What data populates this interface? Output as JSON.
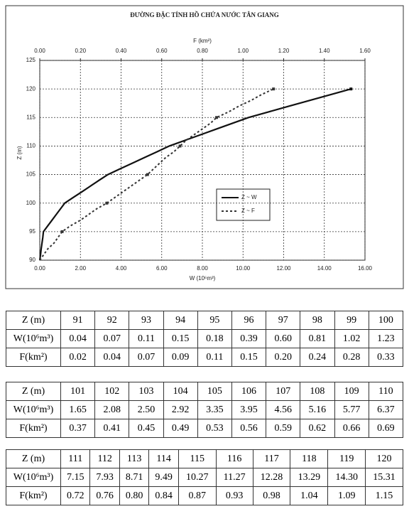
{
  "chart_data": {
    "type": "line",
    "title": "ĐƯỜNG ĐẶC TÍNH HỒ CHỨA NƯỚC TÂN GIANG",
    "xlabel": "W (10⁶m³)",
    "x2label": "F (km²)",
    "ylabel": "Z (m)",
    "xlim": [
      0,
      16
    ],
    "x2lim": [
      0,
      1.6
    ],
    "ylim": [
      90,
      125
    ],
    "xticks": [
      {
        "value": 0,
        "label": "0.00"
      },
      {
        "value": 2,
        "label": "2.00"
      },
      {
        "value": 4,
        "label": "4.00"
      },
      {
        "value": 6,
        "label": "6.00"
      },
      {
        "value": 8,
        "label": "8.00"
      },
      {
        "value": 10,
        "label": "10.00"
      },
      {
        "value": 12,
        "label": "12.00"
      },
      {
        "value": 14,
        "label": "14.00"
      },
      {
        "value": 16,
        "label": "16.00"
      }
    ],
    "x2ticks": [
      {
        "value": 0,
        "label": "0.00"
      },
      {
        "value": 0.2,
        "label": "0.20"
      },
      {
        "value": 0.4,
        "label": "0.40"
      },
      {
        "value": 0.6,
        "label": "0.60"
      },
      {
        "value": 0.8,
        "label": "0.80"
      },
      {
        "value": 1,
        "label": "1.00"
      },
      {
        "value": 1.2,
        "label": "1.20"
      },
      {
        "value": 1.4,
        "label": "1.40"
      },
      {
        "value": 1.6,
        "label": "1.60"
      }
    ],
    "yticks": [
      90,
      95,
      100,
      105,
      110,
      115,
      120,
      125
    ],
    "grid": true,
    "series": [
      {
        "name": "Z ~ W",
        "color": "#111",
        "axis": "x",
        "x": [
          0,
          0.04,
          0.07,
          0.11,
          0.15,
          0.18,
          0.39,
          0.6,
          0.81,
          1.02,
          1.23,
          1.65,
          2.08,
          2.5,
          2.92,
          3.35,
          3.95,
          4.56,
          5.16,
          5.77,
          6.37,
          7.15,
          7.93,
          8.71,
          9.49,
          10.27,
          11.27,
          12.28,
          13.29,
          14.3,
          15.31
        ],
        "y": [
          90,
          91,
          92,
          93,
          94,
          95,
          96,
          97,
          98,
          99,
          100,
          101,
          102,
          103,
          104,
          105,
          106,
          107,
          108,
          109,
          110,
          111,
          112,
          113,
          114,
          115,
          116,
          117,
          118,
          119,
          120
        ]
      },
      {
        "name": "Z ~ F",
        "color": "#333",
        "axis": "x2",
        "x": [
          0,
          0.02,
          0.04,
          0.07,
          0.09,
          0.11,
          0.15,
          0.2,
          0.24,
          0.28,
          0.33,
          0.37,
          0.41,
          0.45,
          0.49,
          0.53,
          0.56,
          0.59,
          0.62,
          0.66,
          0.69,
          0.72,
          0.76,
          0.8,
          0.84,
          0.87,
          0.93,
          0.98,
          1.04,
          1.09,
          1.15
        ],
        "y": [
          90,
          91,
          92,
          93,
          94,
          95,
          96,
          97,
          98,
          99,
          100,
          101,
          102,
          103,
          104,
          105,
          106,
          107,
          108,
          109,
          110,
          111,
          112,
          113,
          114,
          115,
          116,
          117,
          118,
          119,
          120
        ]
      }
    ]
  },
  "tables": [
    {
      "rows": [
        [
          "Z (m)",
          "91",
          "92",
          "93",
          "94",
          "95",
          "96",
          "97",
          "98",
          "99",
          "100"
        ],
        [
          "W(10⁶m³)",
          "0.04",
          "0.07",
          "0.11",
          "0.15",
          "0.18",
          "0.39",
          "0.60",
          "0.81",
          "1.02",
          "1.23"
        ],
        [
          "F(km²)",
          "0.02",
          "0.04",
          "0.07",
          "0.09",
          "0.11",
          "0.15",
          "0.20",
          "0.24",
          "0.28",
          "0.33"
        ]
      ]
    },
    {
      "rows": [
        [
          "Z (m)",
          "101",
          "102",
          "103",
          "104",
          "105",
          "106",
          "107",
          "108",
          "109",
          "110"
        ],
        [
          "W(10⁶m³)",
          "1.65",
          "2.08",
          "2.50",
          "2.92",
          "3.35",
          "3.95",
          "4.56",
          "5.16",
          "5.77",
          "6.37"
        ],
        [
          "F(km²)",
          "0.37",
          "0.41",
          "0.45",
          "0.49",
          "0.53",
          "0.56",
          "0.59",
          "0.62",
          "0.66",
          "0.69"
        ]
      ]
    },
    {
      "rows": [
        [
          "Z (m)",
          "111",
          "112",
          "113",
          "114",
          "115",
          "116",
          "117",
          "118",
          "119",
          "120"
        ],
        [
          "W(10⁶m³)",
          "7.15",
          "7.93",
          "8.71",
          "9.49",
          "10.27",
          "11.27",
          "12.28",
          "13.29",
          "14.30",
          "15.31"
        ],
        [
          "F(km²)",
          "0.72",
          "0.76",
          "0.80",
          "0.84",
          "0.87",
          "0.93",
          "0.98",
          "1.04",
          "1.09",
          "1.15"
        ]
      ]
    }
  ]
}
